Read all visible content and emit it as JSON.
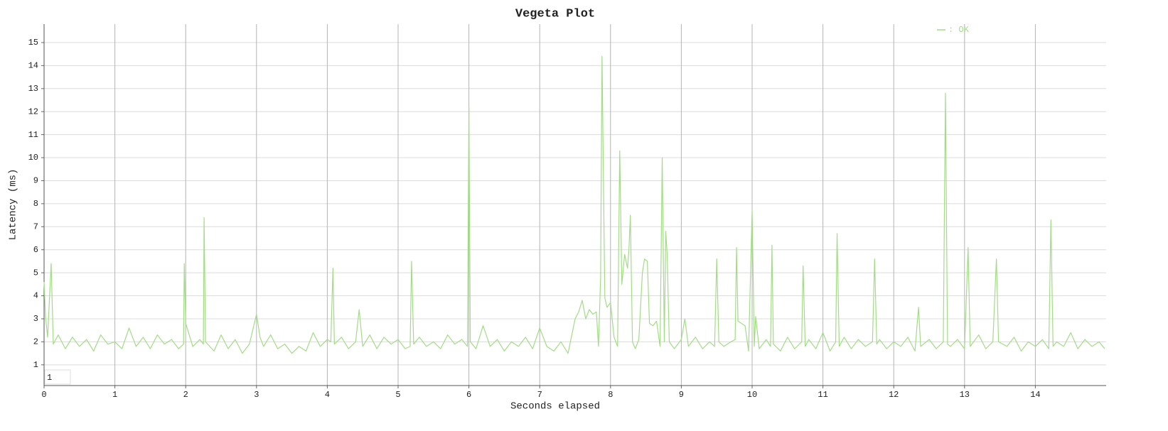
{
  "chart_data": {
    "type": "line",
    "title": "Vegeta Plot",
    "x_label": "Seconds elapsed",
    "y_label": "Latency (ms)",
    "xlim": [
      0,
      15
    ],
    "ylim": [
      0.1,
      15.8
    ],
    "xticks": [
      0,
      1,
      2,
      3,
      4,
      5,
      6,
      7,
      8,
      9,
      10,
      11,
      12,
      13,
      14
    ],
    "yticks": [
      1,
      2,
      3,
      4,
      5,
      6,
      7,
      8,
      9,
      10,
      11,
      12,
      13,
      14,
      15
    ],
    "grid": true,
    "legend": "top-right",
    "annotations": [
      "1"
    ],
    "x": [
      0,
      0.02,
      0.05,
      0.1,
      0.13,
      0.2,
      0.3,
      0.4,
      0.5,
      0.6,
      0.7,
      0.8,
      0.9,
      1.0,
      1.1,
      1.2,
      1.3,
      1.4,
      1.5,
      1.6,
      1.7,
      1.8,
      1.9,
      1.97,
      1.98,
      2.0,
      2.1,
      2.2,
      2.25,
      2.26,
      2.28,
      2.4,
      2.5,
      2.6,
      2.7,
      2.8,
      2.9,
      3.0,
      3.05,
      3.1,
      3.2,
      3.3,
      3.4,
      3.5,
      3.6,
      3.7,
      3.8,
      3.9,
      4.0,
      4.05,
      4.08,
      4.1,
      4.2,
      4.3,
      4.4,
      4.45,
      4.5,
      4.6,
      4.7,
      4.8,
      4.9,
      5.0,
      5.1,
      5.17,
      5.19,
      5.22,
      5.3,
      5.4,
      5.5,
      5.6,
      5.7,
      5.8,
      5.9,
      5.98,
      6.0,
      6.02,
      6.1,
      6.2,
      6.3,
      6.4,
      6.5,
      6.6,
      6.7,
      6.8,
      6.9,
      7.0,
      7.1,
      7.2,
      7.3,
      7.4,
      7.5,
      7.55,
      7.6,
      7.65,
      7.7,
      7.75,
      7.8,
      7.83,
      7.86,
      7.88,
      7.9,
      7.92,
      7.95,
      8.0,
      8.05,
      8.1,
      8.13,
      8.16,
      8.2,
      8.24,
      8.26,
      8.28,
      8.31,
      8.35,
      8.4,
      8.45,
      8.48,
      8.52,
      8.55,
      8.6,
      8.65,
      8.7,
      8.73,
      8.76,
      8.78,
      8.8,
      8.83,
      8.9,
      9.0,
      9.05,
      9.1,
      9.2,
      9.3,
      9.4,
      9.47,
      9.5,
      9.53,
      9.6,
      9.7,
      9.76,
      9.78,
      9.8,
      9.85,
      9.9,
      9.95,
      10.0,
      10.03,
      10.05,
      10.1,
      10.2,
      10.26,
      10.28,
      10.3,
      10.4,
      10.5,
      10.6,
      10.7,
      10.72,
      10.75,
      10.8,
      10.9,
      11.0,
      11.1,
      11.18,
      11.2,
      11.23,
      11.3,
      11.4,
      11.5,
      11.6,
      11.7,
      11.73,
      11.76,
      11.8,
      11.9,
      12.0,
      12.1,
      12.2,
      12.3,
      12.35,
      12.38,
      12.5,
      12.6,
      12.7,
      12.73,
      12.76,
      12.8,
      12.9,
      13.0,
      13.05,
      13.08,
      13.2,
      13.3,
      13.4,
      13.45,
      13.48,
      13.6,
      13.7,
      13.8,
      13.9,
      14.0,
      14.1,
      14.19,
      14.22,
      14.25,
      14.3,
      14.4,
      14.5,
      14.6,
      14.7,
      14.8,
      14.9,
      14.98
    ],
    "series": [
      {
        "name": ": OK",
        "color": "#a3dc87",
        "values": [
          4.6,
          3.1,
          2.2,
          5.4,
          1.9,
          2.3,
          1.7,
          2.2,
          1.8,
          2.1,
          1.6,
          2.3,
          1.9,
          2.0,
          1.7,
          2.6,
          1.8,
          2.2,
          1.7,
          2.3,
          1.9,
          2.1,
          1.7,
          1.9,
          5.4,
          2.8,
          1.8,
          2.1,
          1.9,
          7.4,
          2.0,
          1.6,
          2.3,
          1.7,
          2.1,
          1.5,
          1.9,
          3.2,
          2.2,
          1.8,
          2.3,
          1.7,
          1.9,
          1.5,
          1.8,
          1.6,
          2.4,
          1.8,
          2.1,
          2.0,
          5.2,
          1.9,
          2.2,
          1.7,
          2.0,
          3.4,
          1.8,
          2.3,
          1.7,
          2.2,
          1.9,
          2.1,
          1.7,
          1.8,
          5.5,
          1.9,
          2.2,
          1.8,
          2.0,
          1.7,
          2.3,
          1.9,
          2.1,
          1.8,
          12.2,
          2.0,
          1.7,
          2.7,
          1.8,
          2.1,
          1.6,
          2.0,
          1.8,
          2.2,
          1.7,
          2.6,
          1.8,
          1.6,
          2.0,
          1.5,
          3.0,
          3.3,
          3.8,
          3.0,
          3.4,
          3.2,
          3.3,
          1.8,
          4.8,
          14.4,
          9.0,
          3.9,
          3.5,
          3.7,
          2.2,
          1.8,
          10.3,
          4.5,
          5.8,
          5.2,
          6.0,
          7.5,
          2.0,
          1.7,
          2.1,
          5.0,
          5.6,
          5.5,
          2.8,
          2.7,
          2.9,
          1.8,
          10.0,
          2.0,
          6.8,
          5.8,
          2.0,
          1.7,
          2.1,
          3.0,
          1.8,
          2.2,
          1.7,
          2.0,
          1.8,
          5.6,
          2.0,
          1.8,
          2.0,
          2.1,
          6.1,
          2.9,
          2.8,
          2.7,
          1.6,
          7.7,
          1.8,
          3.1,
          1.7,
          2.1,
          1.8,
          6.2,
          1.9,
          1.6,
          2.2,
          1.7,
          2.0,
          5.3,
          1.8,
          2.1,
          1.7,
          2.4,
          1.6,
          2.0,
          6.7,
          1.8,
          2.2,
          1.7,
          2.1,
          1.8,
          2.0,
          5.6,
          1.9,
          2.1,
          1.7,
          2.0,
          1.8,
          2.2,
          1.6,
          3.5,
          1.8,
          2.1,
          1.7,
          2.0,
          12.8,
          1.9,
          1.8,
          2.1,
          1.7,
          6.1,
          1.8,
          2.3,
          1.7,
          2.0,
          5.6,
          2.0,
          1.8,
          2.2,
          1.6,
          2.0,
          1.8,
          2.1,
          1.7,
          7.3,
          1.8,
          2.0,
          1.8,
          2.4,
          1.7,
          2.1,
          1.8,
          2.0,
          1.7
        ]
      }
    ]
  }
}
